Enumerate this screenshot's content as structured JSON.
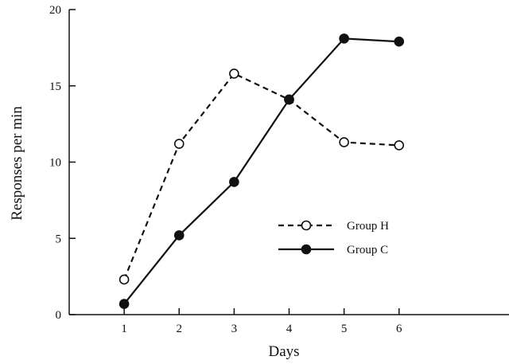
{
  "chart_data": {
    "type": "line",
    "title": "",
    "xlabel": "Days",
    "ylabel": "Responses per min",
    "x": [
      1,
      2,
      3,
      4,
      5,
      6
    ],
    "xlim": [
      0,
      8
    ],
    "ylim": [
      0,
      20
    ],
    "xticks": [
      "1",
      "2",
      "3",
      "4",
      "5",
      "6"
    ],
    "yticks": [
      "0",
      "5",
      "10",
      "15",
      "20"
    ],
    "grid": false,
    "legend_position": "center-right",
    "series": [
      {
        "name": "Group H",
        "values": [
          2.3,
          11.2,
          15.8,
          14.1,
          11.3,
          11.1
        ],
        "line_style": "dashed",
        "marker": "open-circle",
        "color": "#111111"
      },
      {
        "name": "Group C",
        "values": [
          0.7,
          5.2,
          8.7,
          14.1,
          18.1,
          17.9
        ],
        "line_style": "solid",
        "marker": "filled-circle",
        "color": "#111111"
      }
    ]
  }
}
